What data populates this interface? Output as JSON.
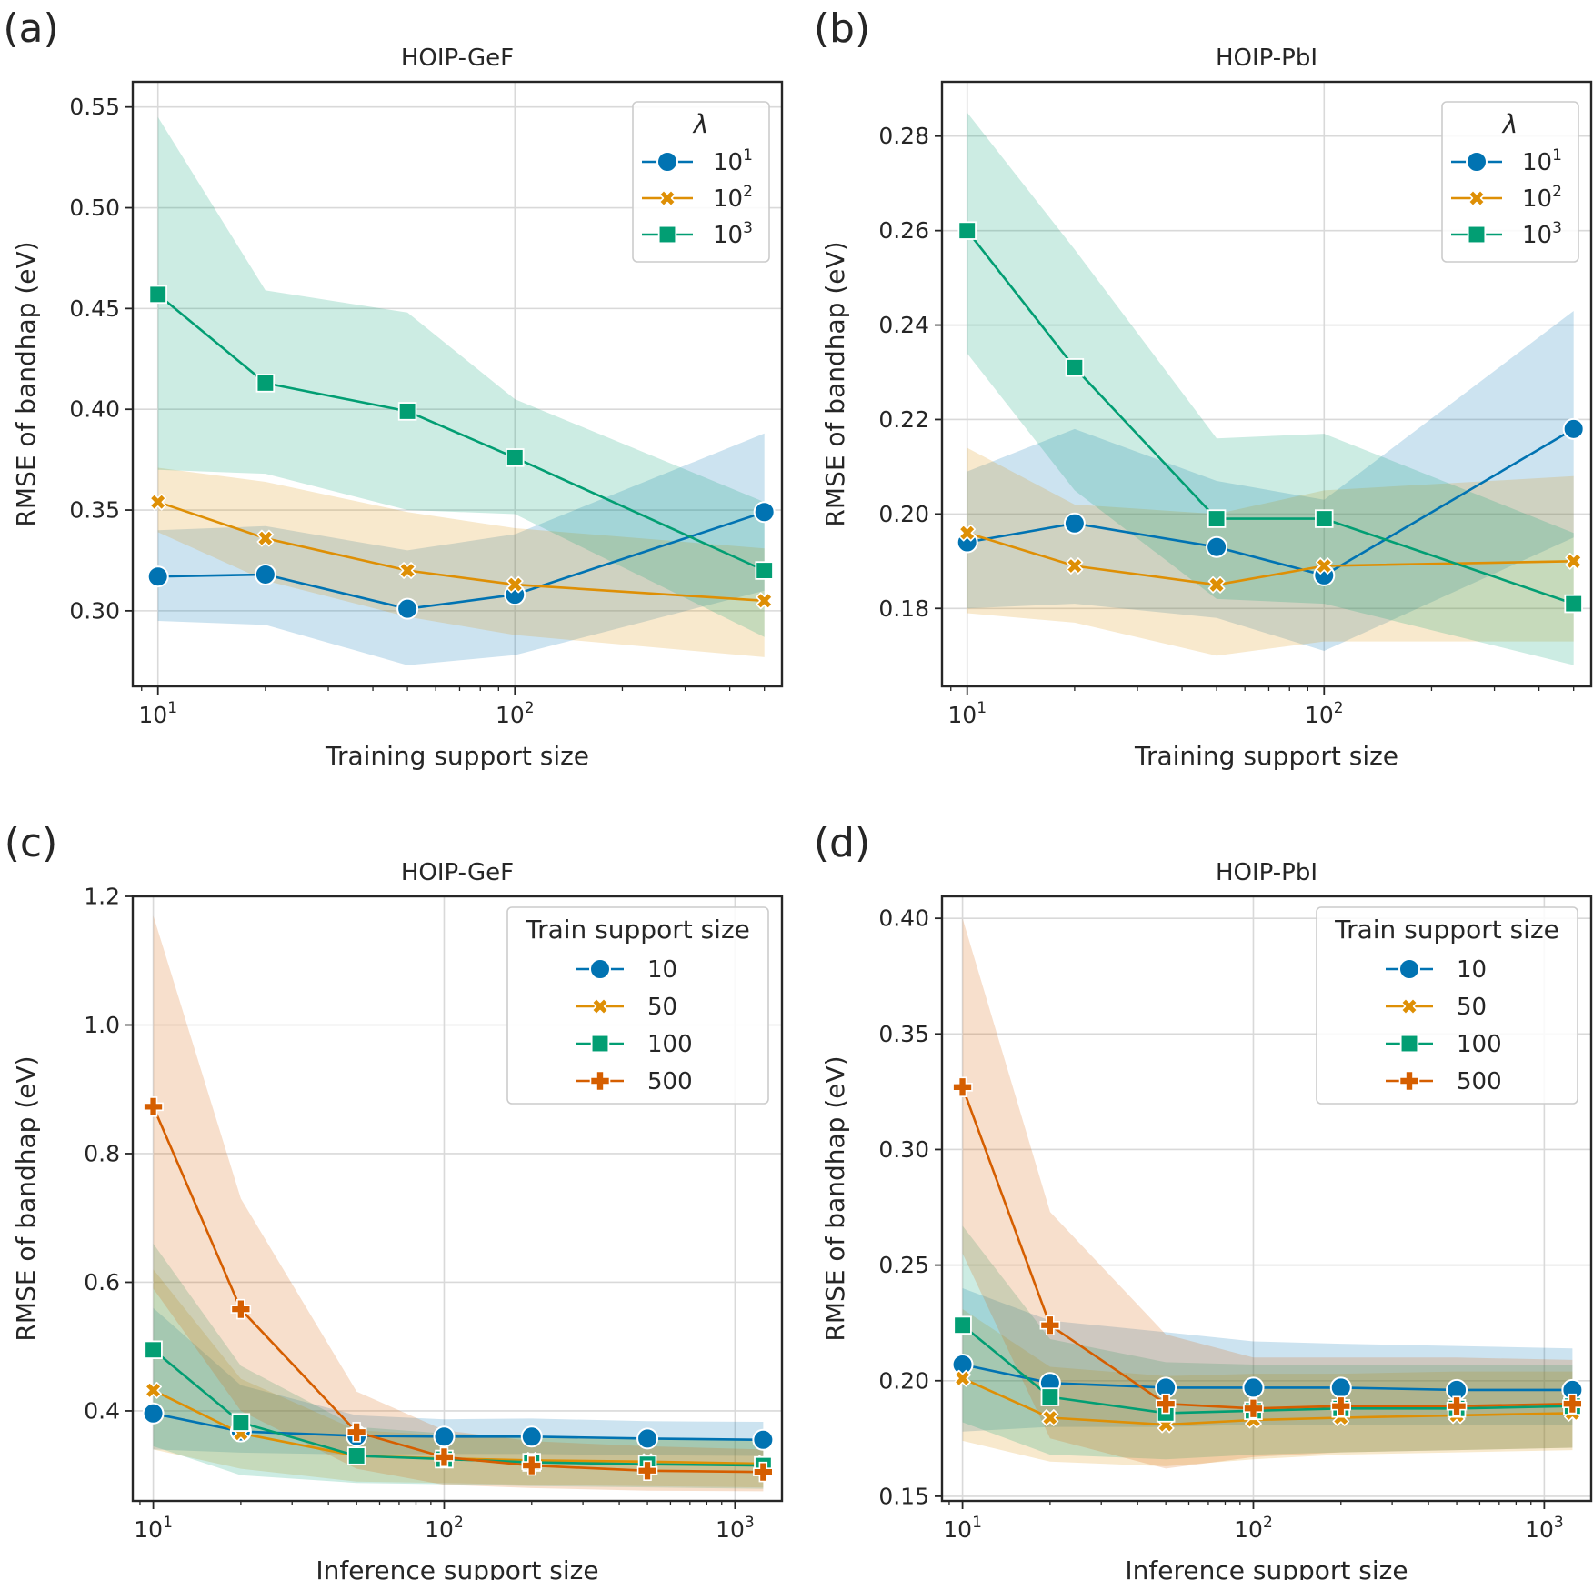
{
  "colors": {
    "blue": "#0173b2",
    "orange": "#de8f05",
    "green": "#029e73",
    "red": "#d55e00",
    "grid": "#d9d9d9",
    "axis": "#262626"
  },
  "chart_data": [
    {
      "panel": "(a)",
      "type": "line",
      "title": "HOIP-GeF",
      "xlabel": "Training support size",
      "ylabel": "RMSE of bandhap (eV)",
      "xscale": "log",
      "xlim": [
        8.5,
        560
      ],
      "ylim": [
        0.2625,
        0.5625
      ],
      "yticks": [
        "0.30",
        "0.35",
        "0.40",
        "0.45",
        "0.50",
        "0.55"
      ],
      "xticks": [
        {
          "value": 10,
          "exp": "1"
        },
        {
          "value": 100,
          "exp": "2"
        }
      ],
      "legend": {
        "title": "λ",
        "placement": "top-right"
      },
      "x": [
        10,
        20,
        50,
        100,
        500
      ],
      "series": [
        {
          "name": "10",
          "sup": "1",
          "color": "blue",
          "marker": "circle",
          "values": [
            0.317,
            0.318,
            0.301,
            0.308,
            0.349
          ],
          "lower": [
            0.295,
            0.293,
            0.273,
            0.278,
            0.31
          ],
          "upper": [
            0.34,
            0.342,
            0.33,
            0.338,
            0.388
          ]
        },
        {
          "name": "10",
          "sup": "2",
          "color": "orange",
          "marker": "x",
          "values": [
            0.354,
            0.336,
            0.32,
            0.313,
            0.305
          ],
          "lower": [
            0.339,
            0.315,
            0.297,
            0.288,
            0.277
          ],
          "upper": [
            0.371,
            0.364,
            0.349,
            0.341,
            0.331
          ]
        },
        {
          "name": "10",
          "sup": "3",
          "color": "green",
          "marker": "square",
          "values": [
            0.457,
            0.413,
            0.399,
            0.376,
            0.32
          ],
          "lower": [
            0.37,
            0.368,
            0.35,
            0.348,
            0.287
          ],
          "upper": [
            0.545,
            0.459,
            0.448,
            0.405,
            0.354
          ]
        }
      ]
    },
    {
      "panel": "(b)",
      "type": "line",
      "title": "HOIP-PbI",
      "xlabel": "Training support size",
      "ylabel": "RMSE of bandhap (eV)",
      "xscale": "log",
      "xlim": [
        8.5,
        560
      ],
      "ylim": [
        0.1635,
        0.2915
      ],
      "yticks": [
        "0.18",
        "0.20",
        "0.22",
        "0.24",
        "0.26",
        "0.28"
      ],
      "xticks": [
        {
          "value": 10,
          "exp": "1"
        },
        {
          "value": 100,
          "exp": "2"
        }
      ],
      "legend": {
        "title": "λ",
        "placement": "top-right"
      },
      "x": [
        10,
        20,
        50,
        100,
        500
      ],
      "series": [
        {
          "name": "10",
          "sup": "1",
          "color": "blue",
          "marker": "circle",
          "values": [
            0.194,
            0.198,
            0.193,
            0.187,
            0.218
          ],
          "lower": [
            0.18,
            0.181,
            0.178,
            0.171,
            0.195
          ],
          "upper": [
            0.209,
            0.218,
            0.207,
            0.203,
            0.243
          ]
        },
        {
          "name": "10",
          "sup": "2",
          "color": "orange",
          "marker": "x",
          "values": [
            0.196,
            0.189,
            0.185,
            0.189,
            0.19
          ],
          "lower": [
            0.179,
            0.177,
            0.17,
            0.173,
            0.173
          ],
          "upper": [
            0.214,
            0.202,
            0.2,
            0.205,
            0.208
          ]
        },
        {
          "name": "10",
          "sup": "3",
          "color": "green",
          "marker": "square",
          "values": [
            0.26,
            0.231,
            0.199,
            0.199,
            0.181
          ],
          "lower": [
            0.234,
            0.205,
            0.182,
            0.181,
            0.168
          ],
          "upper": [
            0.285,
            0.256,
            0.216,
            0.217,
            0.196
          ]
        }
      ]
    },
    {
      "panel": "(c)",
      "type": "line",
      "title": "HOIP-GeF",
      "xlabel": "Inference support size",
      "ylabel": "RMSE of bandhap (eV)",
      "xscale": "log",
      "xlim": [
        8.5,
        1450
      ],
      "ylim": [
        0.26,
        1.2
      ],
      "yticks": [
        "0.4",
        "0.6",
        "0.8",
        "1.0",
        "1.2"
      ],
      "xticks": [
        {
          "value": 10,
          "exp": "1"
        },
        {
          "value": 100,
          "exp": "2"
        },
        {
          "value": 1000,
          "exp": "3"
        }
      ],
      "legend": {
        "title": "Train support size",
        "placement": "top-right"
      },
      "x": [
        10,
        20,
        50,
        100,
        200,
        500,
        1250
      ],
      "series": [
        {
          "name": "10",
          "color": "blue",
          "marker": "circle",
          "values": [
            0.396,
            0.368,
            0.361,
            0.36,
            0.36,
            0.357,
            0.355
          ],
          "lower": [
            0.34,
            0.335,
            0.332,
            0.333,
            0.333,
            0.331,
            0.33
          ],
          "upper": [
            0.56,
            0.44,
            0.393,
            0.387,
            0.388,
            0.384,
            0.383
          ]
        },
        {
          "name": "50",
          "color": "orange",
          "marker": "x",
          "values": [
            0.432,
            0.365,
            0.33,
            0.326,
            0.323,
            0.321,
            0.318
          ],
          "lower": [
            0.34,
            0.31,
            0.29,
            0.288,
            0.285,
            0.283,
            0.281
          ],
          "upper": [
            0.62,
            0.45,
            0.37,
            0.362,
            0.36,
            0.358,
            0.356
          ]
        },
        {
          "name": "100",
          "color": "green",
          "marker": "square",
          "values": [
            0.495,
            0.382,
            0.33,
            0.325,
            0.32,
            0.317,
            0.315
          ],
          "lower": [
            0.345,
            0.3,
            0.288,
            0.286,
            0.283,
            0.281,
            0.279
          ],
          "upper": [
            0.66,
            0.47,
            0.375,
            0.365,
            0.36,
            0.357,
            0.355
          ]
        },
        {
          "name": "500",
          "color": "red",
          "marker": "plus",
          "values": [
            0.873,
            0.558,
            0.367,
            0.328,
            0.315,
            0.307,
            0.305
          ],
          "lower": [
            0.59,
            0.4,
            0.31,
            0.285,
            0.28,
            0.276,
            0.275
          ],
          "upper": [
            1.17,
            0.73,
            0.43,
            0.37,
            0.353,
            0.345,
            0.34
          ]
        }
      ]
    },
    {
      "panel": "(d)",
      "type": "line",
      "title": "HOIP-PbI",
      "xlabel": "Inference support size",
      "ylabel": "RMSE of bandhap (eV)",
      "xscale": "log",
      "xlim": [
        8.5,
        1450
      ],
      "ylim": [
        0.148,
        0.4095
      ],
      "yticks": [
        "0.15",
        "0.20",
        "0.25",
        "0.30",
        "0.35",
        "0.40"
      ],
      "xticks": [
        {
          "value": 10,
          "exp": "1"
        },
        {
          "value": 100,
          "exp": "2"
        },
        {
          "value": 1000,
          "exp": "3"
        }
      ],
      "legend": {
        "title": "Train support size",
        "placement": "top-right"
      },
      "x": [
        10,
        20,
        50,
        100,
        200,
        500,
        1250
      ],
      "series": [
        {
          "name": "10",
          "color": "blue",
          "marker": "circle",
          "values": [
            0.207,
            0.199,
            0.197,
            0.197,
            0.197,
            0.196,
            0.196
          ],
          "lower": [
            0.178,
            0.18,
            0.18,
            0.181,
            0.181,
            0.181,
            0.181
          ],
          "upper": [
            0.24,
            0.226,
            0.221,
            0.217,
            0.216,
            0.215,
            0.214
          ]
        },
        {
          "name": "50",
          "color": "orange",
          "marker": "x",
          "values": [
            0.201,
            0.184,
            0.181,
            0.183,
            0.184,
            0.185,
            0.186
          ],
          "lower": [
            0.174,
            0.165,
            0.163,
            0.166,
            0.168,
            0.169,
            0.17
          ],
          "upper": [
            0.231,
            0.206,
            0.202,
            0.203,
            0.203,
            0.204,
            0.204
          ]
        },
        {
          "name": "100",
          "color": "green",
          "marker": "square",
          "values": [
            0.224,
            0.193,
            0.186,
            0.187,
            0.188,
            0.188,
            0.189
          ],
          "lower": [
            0.182,
            0.168,
            0.166,
            0.168,
            0.169,
            0.17,
            0.171
          ],
          "upper": [
            0.267,
            0.218,
            0.208,
            0.207,
            0.207,
            0.207,
            0.207
          ]
        },
        {
          "name": "500",
          "color": "red",
          "marker": "plus",
          "values": [
            0.327,
            0.224,
            0.19,
            0.188,
            0.189,
            0.189,
            0.19
          ],
          "lower": [
            0.255,
            0.175,
            0.162,
            0.167,
            0.169,
            0.17,
            0.171
          ],
          "upper": [
            0.4,
            0.273,
            0.22,
            0.21,
            0.21,
            0.21,
            0.209
          ]
        }
      ]
    }
  ]
}
